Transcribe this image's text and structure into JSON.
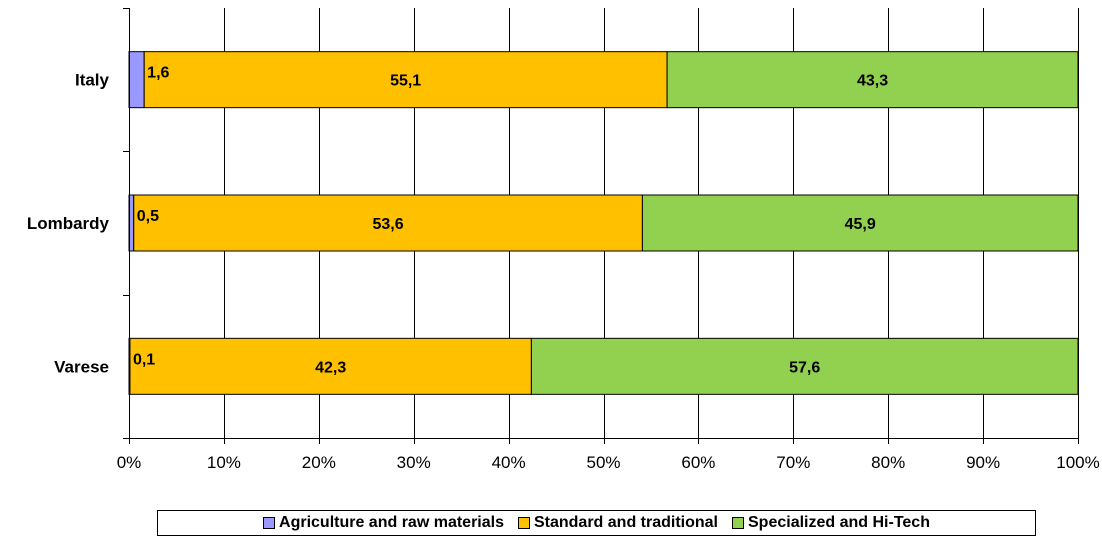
{
  "chart_data": {
    "type": "bar",
    "orientation": "horizontal",
    "stacked": "percent",
    "categories": [
      "Italy",
      "Lombardy",
      "Varese"
    ],
    "series": [
      {
        "name": "Agriculture and raw materials",
        "values": [
          1.6,
          0.5,
          0.1
        ],
        "labels": [
          "1,6",
          "0,5",
          "0,1"
        ],
        "color": "#9999FF"
      },
      {
        "name": "Standard and traditional",
        "values": [
          55.1,
          53.6,
          42.3
        ],
        "labels": [
          "55,1",
          "53,6",
          "42,3"
        ],
        "color": "#FFC000"
      },
      {
        "name": "Specialized and Hi-Tech",
        "values": [
          43.3,
          45.9,
          57.6
        ],
        "labels": [
          "43,3",
          "45,9",
          "57,6"
        ],
        "color": "#92D050"
      }
    ],
    "xlim": [
      0,
      100
    ],
    "xticks": [
      "0%",
      "10%",
      "20%",
      "30%",
      "40%",
      "50%",
      "60%",
      "70%",
      "80%",
      "90%",
      "100%"
    ],
    "grid": true,
    "legend": "bottom"
  }
}
